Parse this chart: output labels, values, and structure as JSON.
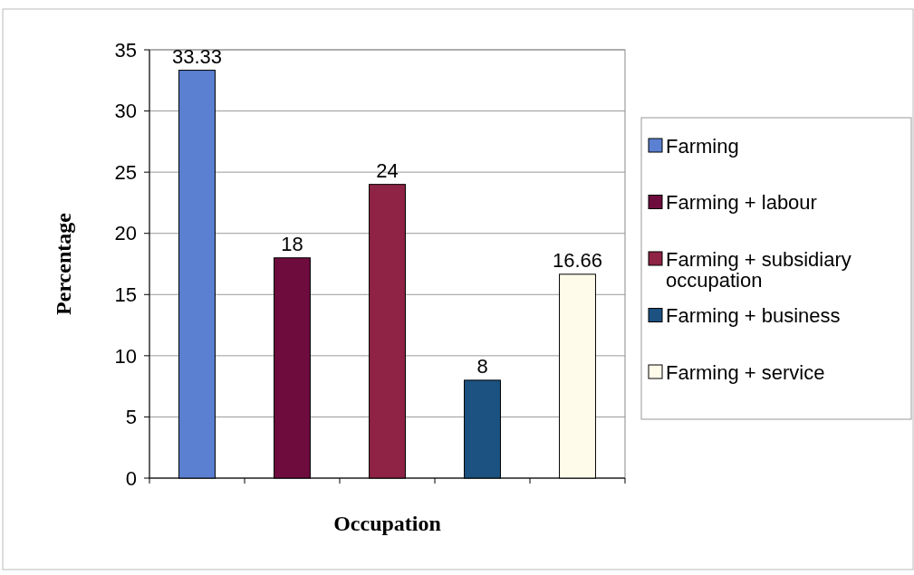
{
  "chart_data": {
    "type": "bar",
    "xlabel": "Occupation",
    "ylabel": "Percentage",
    "categories": [
      null,
      null,
      null,
      null,
      null
    ],
    "stacked": true,
    "data_labels": true,
    "grid": "y",
    "legend": "right",
    "ylim": [
      0,
      35
    ],
    "yticks": [
      0,
      5,
      10,
      15,
      20,
      25,
      30,
      35
    ],
    "series": [
      {
        "name": "Farming",
        "color": "#5b80d2",
        "values": [
          33.33,
          null,
          null,
          null,
          null
        ]
      },
      {
        "name": "Farming + labour",
        "color": "#6e0c3e",
        "values": [
          null,
          18,
          null,
          null,
          null
        ]
      },
      {
        "name": "Farming + subsidiary occupation",
        "color": "#8e2345",
        "values": [
          null,
          null,
          24,
          null,
          null
        ]
      },
      {
        "name": "Farming + business",
        "color": "#1b5281",
        "values": [
          null,
          null,
          null,
          8,
          null
        ]
      },
      {
        "name": "Farming + service",
        "color": "#fffbea",
        "values": [
          null,
          null,
          null,
          null,
          16.66
        ]
      }
    ]
  }
}
